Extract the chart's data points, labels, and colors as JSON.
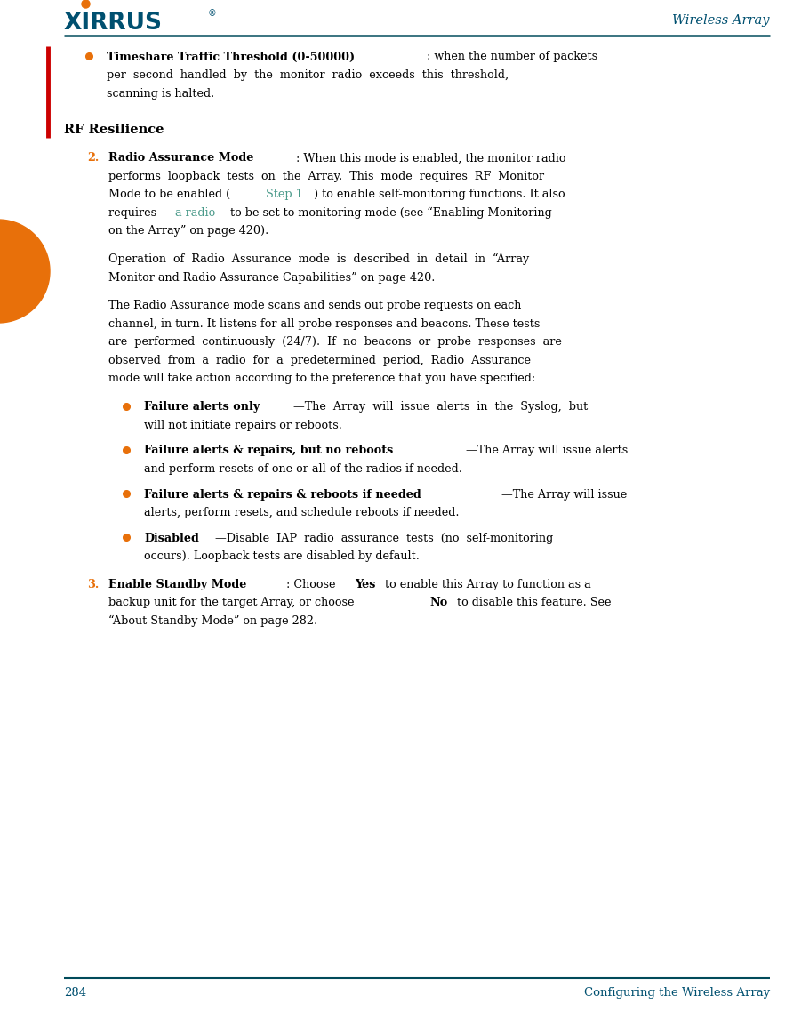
{
  "page_width": 9.01,
  "page_height": 11.37,
  "dpi": 100,
  "bg_color": "#ffffff",
  "teal_color": "#005070",
  "orange_color": "#e8700a",
  "red_bar_color": "#cc0000",
  "link_color": "#4a9a8a",
  "text_color": "#000000",
  "header_line_color": "#004a5a",
  "footer_line_color": "#004a5a",
  "header_right_text": "Wireless Array",
  "footer_left_text": "284",
  "footer_right_text": "Configuring the Wireless Array",
  "logo_text": "XIRRUS",
  "fs": 9.2,
  "lh": 0.205
}
